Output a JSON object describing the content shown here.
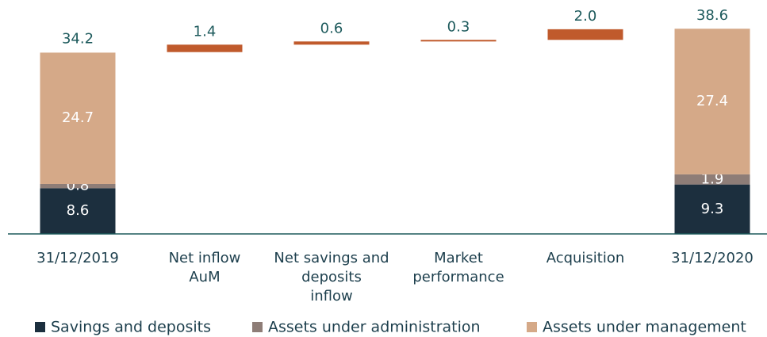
{
  "chart_data": {
    "type": "waterfall",
    "categories": [
      [
        "31/12/2019"
      ],
      [
        "Net inflow",
        "AuM"
      ],
      [
        "Net savings and",
        "deposits",
        "inflow"
      ],
      [
        "Market",
        "performance"
      ],
      [
        "Acquisition"
      ],
      [
        "31/12/2020"
      ]
    ],
    "series": [
      {
        "name": "Savings and deposits",
        "color": "#1c2f3e",
        "values": [
          8.6,
          null,
          null,
          null,
          null,
          9.3
        ]
      },
      {
        "name": "Assets under administration",
        "color": "#8e7d77",
        "values": [
          0.8,
          null,
          null,
          null,
          null,
          1.9
        ]
      },
      {
        "name": "Assets under management",
        "color": "#d5a988",
        "values": [
          24.7,
          null,
          null,
          null,
          null,
          27.4
        ]
      }
    ],
    "totals": [
      34.2,
      null,
      null,
      null,
      null,
      38.6
    ],
    "increments": {
      "color": "#c05a2c",
      "values": [
        null,
        1.4,
        0.6,
        0.3,
        2.0,
        null
      ],
      "value_labels": [
        null,
        "1.4",
        "0.6",
        "0.3",
        "2.0",
        null
      ]
    },
    "ylim": [
      0,
      44
    ]
  }
}
